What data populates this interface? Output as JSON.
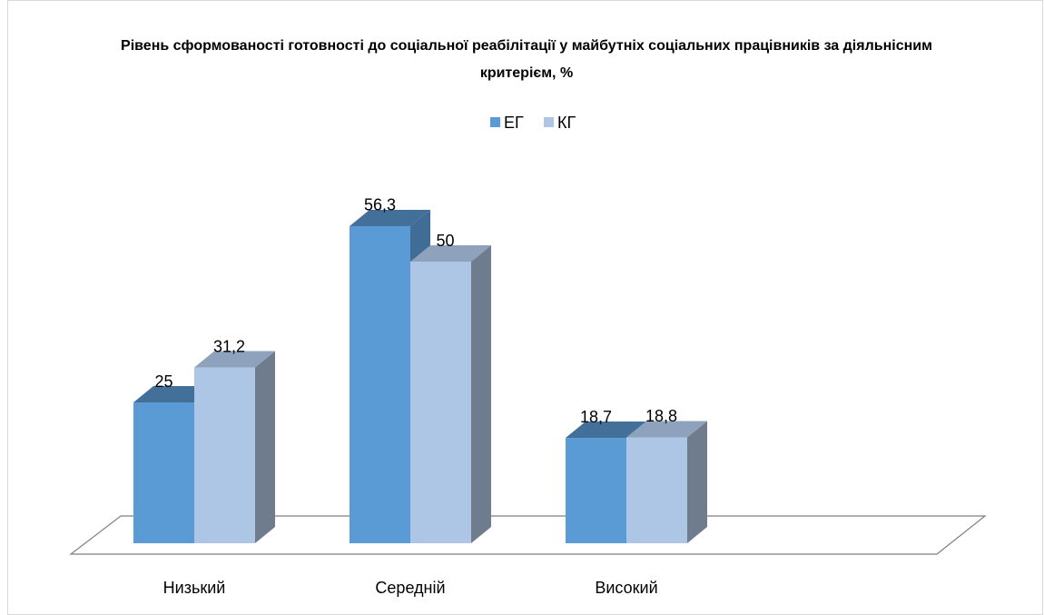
{
  "chart_data": {
    "type": "bar3d",
    "title": "Рівень сформованості готовності до соціальної реабілітації у майбутніх соціальних працівників за діяльнісним критерієм, %",
    "categories": [
      "Низький",
      "Середній",
      "Високий"
    ],
    "series": [
      {
        "name": "ЕГ",
        "color": "#5b9bd5",
        "values": [
          25,
          56.3,
          18.7
        ],
        "value_labels": [
          "25",
          "56,3",
          "18,7"
        ]
      },
      {
        "name": "КГ",
        "color": "#aec6e6",
        "values": [
          31.2,
          50,
          18.8
        ],
        "value_labels": [
          "31,2",
          "50",
          "18,8"
        ]
      }
    ],
    "legend": "top"
  }
}
